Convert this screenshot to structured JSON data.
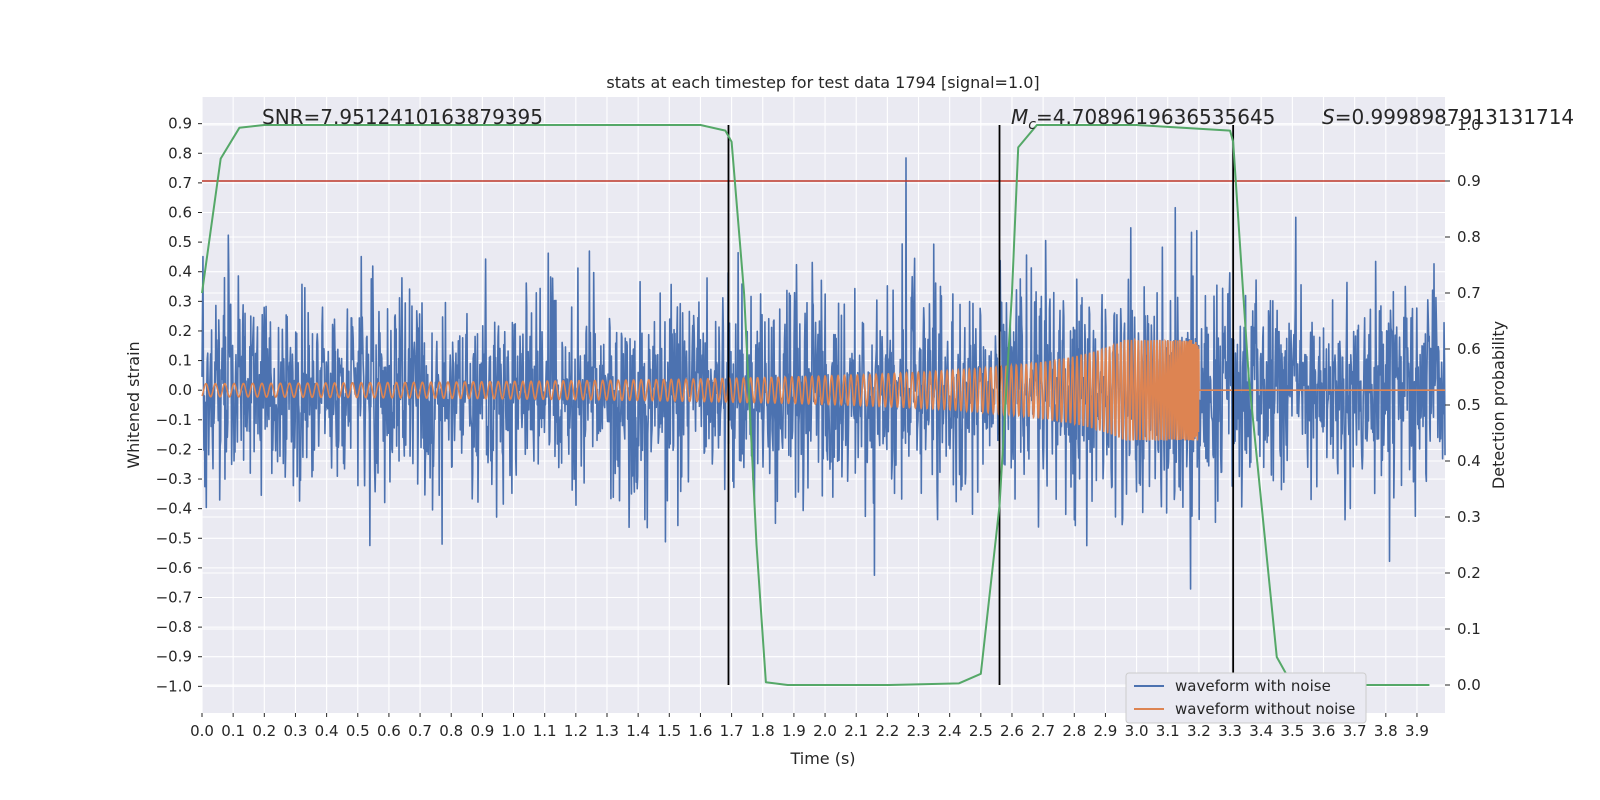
{
  "chart_data": {
    "type": "line",
    "title": "stats at each timestep for test data 1794 [signal=1.0]",
    "xlabel": "Time (s)",
    "ylabel": "Whitened strain",
    "y2label": "Detection probability",
    "xlim": [
      0.0,
      3.99
    ],
    "ylim": [
      -1.09,
      0.99
    ],
    "y2lim": [
      -0.05,
      1.05
    ],
    "x_ticks": [
      "0.0",
      "0.1",
      "0.2",
      "0.3",
      "0.4",
      "0.5",
      "0.6",
      "0.7",
      "0.8",
      "0.9",
      "1.0",
      "1.1",
      "1.2",
      "1.3",
      "1.4",
      "1.5",
      "1.6",
      "1.7",
      "1.8",
      "1.9",
      "2.0",
      "2.1",
      "2.2",
      "2.3",
      "2.4",
      "2.5",
      "2.6",
      "2.7",
      "2.8",
      "2.9",
      "3.0",
      "3.1",
      "3.2",
      "3.3",
      "3.4",
      "3.5",
      "3.6",
      "3.7",
      "3.8",
      "3.9"
    ],
    "y_ticks": [
      "0.9",
      "0.8",
      "0.7",
      "0.6",
      "0.5",
      "0.4",
      "0.3",
      "0.2",
      "0.1",
      "0.0",
      "−0.1",
      "−0.2",
      "−0.3",
      "−0.4",
      "−0.5",
      "−0.6",
      "−0.7",
      "−0.8",
      "−0.9",
      "−1.0"
    ],
    "y2_ticks": [
      "1.0",
      "0.9",
      "0.8",
      "0.7",
      "0.6",
      "0.5",
      "0.4",
      "0.3",
      "0.2",
      "0.1",
      "0.0"
    ],
    "annotations": {
      "snr": "SNR=7.9512410163879395",
      "mc_symbol": "M",
      "mc_sub": "c",
      "mc_value": "=4.7089619636535645",
      "s_symbol": "S",
      "s_value": "=0.9998987913131714"
    },
    "threshold_line": {
      "y2": 0.9,
      "color": "#c0392b"
    },
    "vertical_lines": [
      1.69,
      2.56,
      3.31
    ],
    "series": [
      {
        "name": "waveform with noise",
        "color": "#4c72b0",
        "kind": "noise",
        "std": 0.17
      },
      {
        "name": "waveform without noise",
        "color": "#dd8452",
        "kind": "chirp",
        "merger_time": 3.2,
        "amp_start": 0.022,
        "amp_peak": 0.17
      },
      {
        "name": "detection probability",
        "color": "#55a868",
        "axis": "y2",
        "x": [
          0.0,
          0.06,
          0.12,
          0.2,
          0.3,
          0.5,
          1.0,
          1.5,
          1.6,
          1.68,
          1.7,
          1.74,
          1.78,
          1.81,
          1.88,
          2.0,
          2.2,
          2.43,
          2.5,
          2.56,
          2.6,
          2.62,
          2.68,
          2.75,
          3.0,
          3.3,
          3.31,
          3.36,
          3.45,
          3.5,
          3.6,
          3.94
        ],
        "y": [
          0.7,
          0.94,
          0.995,
          1.0,
          1.0,
          1.0,
          1.0,
          1.0,
          1.0,
          0.99,
          0.97,
          0.7,
          0.25,
          0.005,
          0.0,
          0.0,
          0.0,
          0.003,
          0.02,
          0.32,
          0.7,
          0.96,
          1.0,
          1.0,
          1.0,
          0.99,
          0.97,
          0.55,
          0.05,
          0.0,
          0.0,
          0.0
        ]
      }
    ],
    "legend": [
      {
        "label": "waveform with noise",
        "color": "#4c72b0"
      },
      {
        "label": "waveform without noise",
        "color": "#dd8452"
      }
    ],
    "legend_position": "lower-right",
    "grid": true
  }
}
